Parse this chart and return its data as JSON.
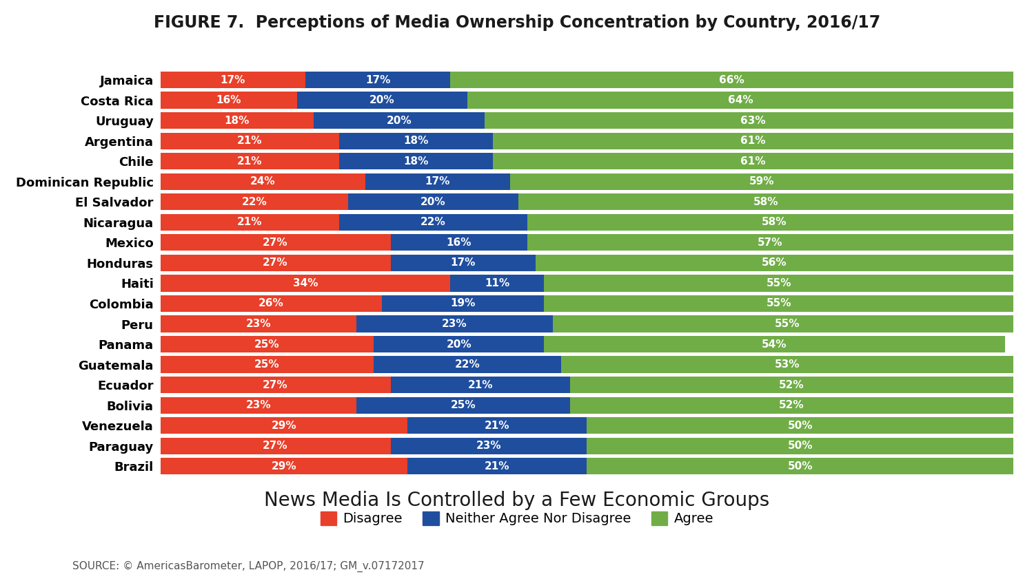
{
  "title": "FIGURE 7.  Perceptions of Media Ownership Concentration by Country, 2016/17",
  "subtitle": "News Media Is Controlled by a Few Economic Groups",
  "source": "SOURCE: © AmericasBarometer, LAPOP, 2016/17; GM_v.07172017",
  "countries": [
    "Jamaica",
    "Costa Rica",
    "Uruguay",
    "Argentina",
    "Chile",
    "Dominican Republic",
    "El Salvador",
    "Nicaragua",
    "Mexico",
    "Honduras",
    "Haiti",
    "Colombia",
    "Peru",
    "Panama",
    "Guatemala",
    "Ecuador",
    "Bolivia",
    "Venezuela",
    "Paraguay",
    "Brazil"
  ],
  "disagree": [
    17,
    16,
    18,
    21,
    21,
    24,
    22,
    21,
    27,
    27,
    34,
    26,
    23,
    25,
    25,
    27,
    23,
    29,
    27,
    29
  ],
  "neither": [
    17,
    20,
    20,
    18,
    18,
    17,
    20,
    22,
    16,
    17,
    11,
    19,
    23,
    20,
    22,
    21,
    25,
    21,
    23,
    21
  ],
  "agree": [
    66,
    64,
    63,
    61,
    61,
    59,
    58,
    58,
    57,
    56,
    55,
    55,
    55,
    54,
    53,
    52,
    52,
    50,
    50,
    50
  ],
  "colors": {
    "disagree": "#E8402A",
    "neither": "#1F4E9E",
    "agree": "#70AD47"
  },
  "legend_labels": [
    "Disagree",
    "Neither Agree Nor Disagree",
    "Agree"
  ],
  "background_color": "#FFFFFF",
  "bar_height": 0.82,
  "title_fontsize": 17,
  "subtitle_fontsize": 20,
  "label_fontsize": 11,
  "tick_fontsize": 13,
  "source_fontsize": 11,
  "legend_fontsize": 14
}
